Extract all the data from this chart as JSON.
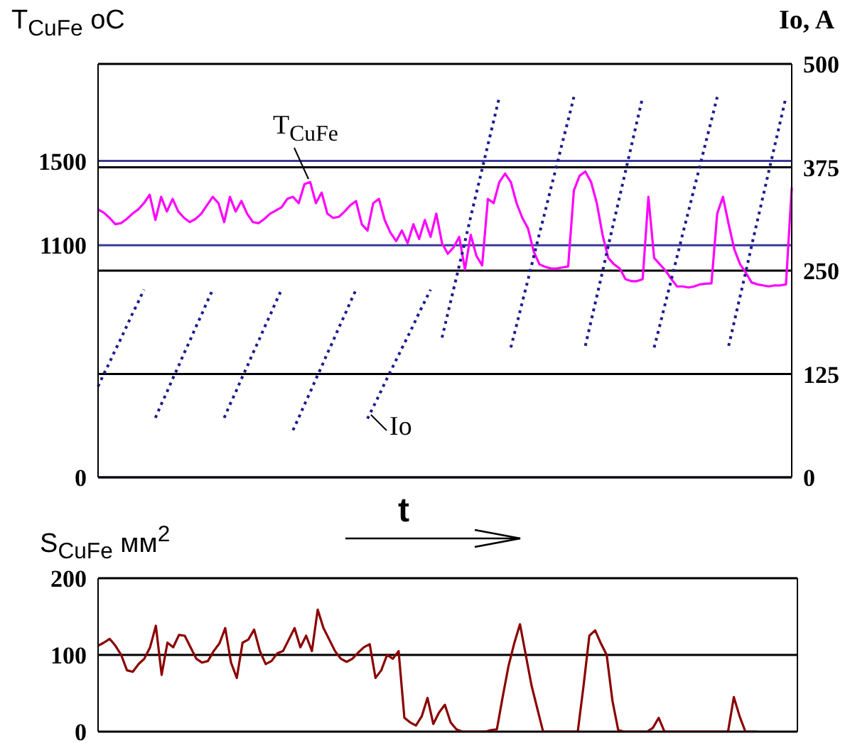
{
  "chart_data": [
    {
      "type": "line",
      "ylabel": "T$_{CuFe}$ oC",
      "y2label": "Io, A",
      "categories": [
        null,
        null,
        null,
        null,
        null,
        null,
        null,
        null,
        null,
        null,
        null,
        null,
        null,
        null,
        null,
        null,
        null,
        null,
        null,
        null,
        null,
        null,
        null,
        null,
        null,
        null,
        null,
        null,
        null,
        null,
        null,
        null,
        null,
        null,
        null,
        null,
        null,
        null,
        null,
        null,
        null,
        null,
        null,
        null,
        null,
        null,
        null,
        null,
        null,
        null,
        null,
        null,
        null,
        null,
        null,
        null,
        null,
        null,
        null,
        null,
        null,
        null,
        null,
        null,
        null,
        null,
        null,
        null,
        null,
        null,
        null,
        null,
        null,
        null,
        null,
        null,
        null,
        null,
        null,
        null,
        null,
        null,
        null,
        null,
        null,
        null,
        null,
        null,
        null,
        null,
        null,
        null,
        null,
        null,
        null,
        null,
        null,
        null,
        null,
        null,
        null,
        null,
        null,
        null,
        null,
        null,
        null,
        null,
        null,
        null,
        null,
        null,
        null,
        null,
        null,
        null,
        null,
        null,
        null,
        null,
        null,
        null
      ],
      "series": [
        {
          "name": "T$_{CuFe}$",
          "color": "#ff00ff",
          "line_style": "solid",
          "values": [
            1270,
            1255,
            1230,
            1200,
            1205,
            1225,
            1250,
            1270,
            1300,
            1340,
            1220,
            1330,
            1260,
            1320,
            1260,
            1230,
            1210,
            1225,
            1250,
            1290,
            1330,
            1300,
            1210,
            1330,
            1260,
            1310,
            1250,
            1210,
            1205,
            1225,
            1250,
            1265,
            1280,
            1320,
            1330,
            1300,
            1390,
            1400,
            1300,
            1350,
            1250,
            1230,
            1235,
            1260,
            1290,
            1310,
            1200,
            1170,
            1300,
            1320,
            1220,
            1160,
            1120,
            1170,
            1110,
            1200,
            1130,
            1220,
            1140,
            1250,
            1110,
            1060,
            1090,
            1140,
            985,
            1150,
            1050,
            1005,
            1320,
            1300,
            1400,
            1440,
            1400,
            1300,
            1230,
            1180,
            1070,
            1010,
            998,
            990,
            990,
            995,
            1000,
            1360,
            1430,
            1450,
            1400,
            1300,
            1150,
            1040,
            1010,
            990,
            940,
            930,
            930,
            940,
            1330,
            1040,
            1010,
            980,
            940,
            905,
            905,
            900,
            905,
            915,
            918,
            920,
            1250,
            1330,
            1200,
            1080,
            1010,
            970,
            924,
            915,
            910,
            905,
            910,
            910,
            915,
            1373
          ]
        },
        {
          "name": "Io",
          "color": "#1c1c8c",
          "axis": "y2",
          "line_style": "dotted",
          "values": [
            110,
            125,
            139,
            154,
            168,
            183,
            198,
            212,
            227,
            null,
            72,
            88,
            103,
            119,
            134,
            150,
            165,
            181,
            196,
            212,
            227,
            null,
            72,
            88,
            103,
            119,
            134,
            150,
            165,
            181,
            196,
            212,
            227,
            null,
            57,
            72,
            88,
            103,
            119,
            134,
            150,
            165,
            181,
            196,
            212,
            227,
            null,
            71,
            85,
            99,
            114,
            128,
            142,
            156,
            170,
            184,
            199,
            213,
            227,
            null,
            169,
            198,
            227,
            256,
            285,
            315,
            344,
            373,
            402,
            431,
            460,
            null,
            157,
            184,
            212,
            239,
            267,
            295,
            322,
            350,
            377,
            405,
            432,
            460,
            null,
            159,
            189,
            219,
            249,
            280,
            310,
            340,
            370,
            400,
            430,
            460,
            null,
            157,
            184,
            212,
            239,
            267,
            295,
            322,
            350,
            377,
            405,
            432,
            460,
            null,
            159,
            189,
            219,
            249,
            280,
            310,
            340,
            370,
            400,
            430,
            460,
            null
          ]
        }
      ],
      "ylim": [
        0,
        1960
      ],
      "yticks": [
        0,
        1100,
        1500
      ],
      "y2lim": [
        0,
        500
      ],
      "y2ticks": [
        0,
        125,
        250,
        375,
        500
      ],
      "grid": "y",
      "marker": "none"
    },
    {
      "type": "line",
      "ylabel": "S$_{CuFe}$ мм$^{2}$",
      "annotations": [
        "t"
      ],
      "categories": [
        null,
        null,
        null,
        null,
        null,
        null,
        null,
        null,
        null,
        null,
        null,
        null,
        null,
        null,
        null,
        null,
        null,
        null,
        null,
        null,
        null,
        null,
        null,
        null,
        null,
        null,
        null,
        null,
        null,
        null,
        null,
        null,
        null,
        null,
        null,
        null,
        null,
        null,
        null,
        null,
        null,
        null,
        null,
        null,
        null,
        null,
        null,
        null,
        null,
        null,
        null,
        null,
        null,
        null,
        null,
        null,
        null,
        null,
        null,
        null,
        null,
        null,
        null,
        null,
        null,
        null,
        null,
        null,
        null,
        null,
        null,
        null,
        null,
        null,
        null,
        null,
        null,
        null,
        null,
        null,
        null,
        null,
        null,
        null,
        null,
        null,
        null,
        null,
        null,
        null,
        null,
        null,
        null,
        null,
        null,
        null,
        null,
        null,
        null,
        null,
        null,
        null,
        null,
        null,
        null,
        null,
        null,
        null,
        null,
        null,
        null,
        null,
        null,
        null,
        null,
        null,
        null,
        null,
        null,
        null,
        null,
        null
      ],
      "series": [
        {
          "color": "#8b0000",
          "values": [
            112,
            116,
            121,
            112,
            100,
            80,
            78,
            88,
            95,
            110,
            138,
            74,
            116,
            110,
            126,
            125,
            110,
            95,
            90,
            92,
            105,
            115,
            135,
            90,
            70,
            116,
            120,
            133,
            105,
            88,
            92,
            102,
            105,
            120,
            135,
            110,
            125,
            105,
            159,
            135,
            120,
            105,
            95,
            91,
            95,
            103,
            110,
            114,
            70,
            80,
            100,
            95,
            105,
            18,
            12,
            8,
            20,
            44,
            10,
            25,
            35,
            12,
            3,
            0,
            0,
            0,
            0,
            0,
            2,
            3,
            45,
            85,
            115,
            140,
            100,
            60,
            30,
            0,
            0,
            0,
            0,
            0,
            0,
            0,
            60,
            125,
            132,
            115,
            100,
            40,
            2,
            0,
            0,
            0,
            0,
            0,
            5,
            18,
            0,
            0,
            0,
            0,
            0,
            0,
            0,
            0,
            0,
            0,
            0,
            0,
            45,
            20,
            0,
            0,
            0,
            null,
            null,
            null,
            null,
            null,
            null,
            null
          ]
        }
      ],
      "ylim": [
        0,
        200
      ],
      "yticks": [
        0,
        100,
        200
      ],
      "grid": "y",
      "marker": "none"
    }
  ]
}
